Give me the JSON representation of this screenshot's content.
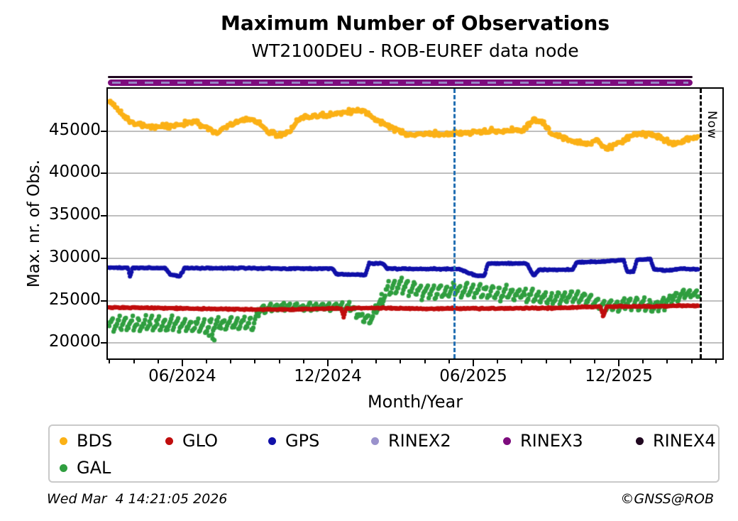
{
  "header": {
    "title": "Maximum Number of Observations",
    "subtitle": "WT2100DEU - ROB-EUREF data node"
  },
  "annotations": {
    "now_label": "Now",
    "footer_left": "Wed Mar  4 14:21:05 2026",
    "footer_right": "©GNSS@ROB"
  },
  "chart_data": {
    "type": "scatter",
    "title": "Maximum Number of Observations",
    "subtitle": "WT2100DEU - ROB-EUREF data node",
    "xlabel": "Month/Year",
    "ylabel": "Max. nr. of Obs.",
    "x_unit": "months since 2024-01-01",
    "xlim": [
      1.93,
      27.27
    ],
    "ylim": [
      18200,
      50000
    ],
    "grid": "horizontal-only",
    "legend_position": "bottom",
    "y_tick_values": [
      45000,
      40000,
      35000,
      30000,
      25000,
      20000
    ],
    "y_tick_labels": [
      "45000",
      "40000",
      "35000",
      "30000",
      "25000",
      "20000"
    ],
    "x_tick_months": [
      5,
      11,
      17,
      23
    ],
    "x_tick_labels": [
      "06/2024",
      "12/2024",
      "06/2025",
      "12/2025"
    ],
    "x_minor_months": [
      2,
      3,
      4,
      6,
      7,
      8,
      9,
      10,
      12,
      13,
      14,
      15,
      16,
      18,
      19,
      20,
      21,
      22,
      24,
      25,
      26,
      27
    ],
    "markers": {
      "event_vline_month": 16.18,
      "event_vline_color": "#2470b3",
      "now_vline_month": 26.32,
      "now_vline_color": "#000000",
      "series_end_month": 26.3,
      "rinex_end_month": 26.05
    },
    "z_order": [
      "GAL",
      "GLO",
      "GPS",
      "BDS"
    ],
    "series": [
      {
        "name": "BDS",
        "color": "#fbb116",
        "marker_radius": 3.3,
        "noise": 280,
        "step": 0.04,
        "anchors": [
          [
            1.95,
            48500
          ],
          [
            2.15,
            48200
          ],
          [
            2.5,
            47100
          ],
          [
            2.9,
            46000
          ],
          [
            3.4,
            45600
          ],
          [
            4.3,
            45500
          ],
          [
            5.0,
            45800
          ],
          [
            5.5,
            46100
          ],
          [
            6.0,
            45400
          ],
          [
            6.4,
            44800
          ],
          [
            6.9,
            45600
          ],
          [
            7.5,
            46300
          ],
          [
            8.1,
            46200
          ],
          [
            8.5,
            45000
          ],
          [
            9.0,
            44400
          ],
          [
            9.4,
            44900
          ],
          [
            9.8,
            46500
          ],
          [
            10.5,
            46800
          ],
          [
            11.2,
            47000
          ],
          [
            11.8,
            47200
          ],
          [
            12.2,
            47500
          ],
          [
            12.6,
            47200
          ],
          [
            13.0,
            46400
          ],
          [
            13.6,
            45400
          ],
          [
            14.2,
            44700
          ],
          [
            15.0,
            44600
          ],
          [
            16.0,
            44650
          ],
          [
            16.8,
            44800
          ],
          [
            17.6,
            45000
          ],
          [
            18.4,
            45000
          ],
          [
            19.0,
            45100
          ],
          [
            19.5,
            46300
          ],
          [
            19.9,
            46000
          ],
          [
            20.2,
            44800
          ],
          [
            20.7,
            44200
          ],
          [
            21.2,
            43700
          ],
          [
            21.7,
            43500
          ],
          [
            22.1,
            43900
          ],
          [
            22.5,
            42800
          ],
          [
            22.9,
            43500
          ],
          [
            23.4,
            44200
          ],
          [
            23.8,
            44800
          ],
          [
            24.3,
            44600
          ],
          [
            24.8,
            44100
          ],
          [
            25.3,
            43400
          ],
          [
            25.8,
            44000
          ],
          [
            26.3,
            44300
          ]
        ]
      },
      {
        "name": "GLO",
        "color": "#c00d0d",
        "marker_radius": 3.0,
        "noise": 80,
        "step": 0.033,
        "anchors": [
          [
            1.95,
            24200
          ],
          [
            4.0,
            24150
          ],
          [
            6.0,
            24050
          ],
          [
            8.0,
            23980
          ],
          [
            9.5,
            23950
          ],
          [
            11.0,
            24100
          ],
          [
            11.55,
            24100
          ],
          [
            11.65,
            23000
          ],
          [
            11.75,
            24100
          ],
          [
            13.0,
            24150
          ],
          [
            15.0,
            24050
          ],
          [
            17.0,
            24100
          ],
          [
            19.0,
            24100
          ],
          [
            20.5,
            24150
          ],
          [
            21.5,
            24250
          ],
          [
            22.25,
            24300
          ],
          [
            22.35,
            23100
          ],
          [
            22.5,
            24300
          ],
          [
            23.5,
            24350
          ],
          [
            24.5,
            24300
          ],
          [
            25.5,
            24450
          ],
          [
            26.3,
            24400
          ]
        ]
      },
      {
        "name": "GPS",
        "color": "#1010a8",
        "marker_radius": 3.0,
        "noise": 70,
        "step": 0.033,
        "anchors": [
          [
            1.95,
            28900
          ],
          [
            2.75,
            28900
          ],
          [
            2.85,
            27800
          ],
          [
            2.95,
            28900
          ],
          [
            4.3,
            28850
          ],
          [
            4.5,
            28100
          ],
          [
            4.9,
            27900
          ],
          [
            5.1,
            28850
          ],
          [
            7.0,
            28850
          ],
          [
            9.0,
            28800
          ],
          [
            11.2,
            28800
          ],
          [
            11.35,
            28150
          ],
          [
            12.55,
            28050
          ],
          [
            12.7,
            29450
          ],
          [
            13.3,
            29350
          ],
          [
            13.45,
            28800
          ],
          [
            14.5,
            28750
          ],
          [
            16.4,
            28750
          ],
          [
            17.1,
            27950
          ],
          [
            17.45,
            27950
          ],
          [
            17.6,
            29400
          ],
          [
            19.2,
            29400
          ],
          [
            19.35,
            28650
          ],
          [
            19.5,
            27950
          ],
          [
            19.7,
            28650
          ],
          [
            21.1,
            28650
          ],
          [
            21.25,
            29500
          ],
          [
            22.3,
            29650
          ],
          [
            23.2,
            29800
          ],
          [
            23.35,
            28400
          ],
          [
            23.6,
            28400
          ],
          [
            23.75,
            29850
          ],
          [
            24.3,
            29900
          ],
          [
            24.45,
            28750
          ],
          [
            25.0,
            28550
          ],
          [
            25.6,
            28800
          ],
          [
            26.3,
            28700
          ]
        ]
      },
      {
        "name": "RINEX2",
        "color": "#9a92cc",
        "constant_value": 50700,
        "style": "dashes-over-rinex3"
      },
      {
        "name": "RINEX3",
        "color": "#7d0c7d",
        "constant_value": 50700,
        "style": "thick-band"
      },
      {
        "name": "RINEX4",
        "color": "#200820",
        "constant_value": 51400,
        "style": "thin-line"
      },
      {
        "name": "GAL",
        "color": "#2f9e3f",
        "marker_radius": 3.2,
        "step": 0.036,
        "anchors_band": [
          [
            1.95,
            22400,
            1000
          ],
          [
            3.0,
            22300,
            1000
          ],
          [
            4.0,
            22300,
            1000
          ],
          [
            5.0,
            22200,
            1000
          ],
          [
            6.3,
            22000,
            1100
          ],
          [
            7.0,
            22300,
            900
          ],
          [
            7.9,
            22200,
            900
          ],
          [
            8.2,
            23900,
            600
          ],
          [
            9.0,
            24300,
            500
          ],
          [
            10.0,
            24200,
            500
          ],
          [
            11.0,
            24300,
            500
          ],
          [
            12.0,
            24200,
            550
          ],
          [
            12.4,
            23000,
            600
          ],
          [
            12.8,
            22900,
            600
          ],
          [
            13.1,
            24500,
            700
          ],
          [
            13.5,
            26500,
            1300
          ],
          [
            14.0,
            26800,
            1100
          ],
          [
            14.8,
            26200,
            1000
          ],
          [
            15.5,
            26000,
            1000
          ],
          [
            16.3,
            26300,
            950
          ],
          [
            17.0,
            26200,
            900
          ],
          [
            17.8,
            26000,
            900
          ],
          [
            18.6,
            25900,
            850
          ],
          [
            19.4,
            25600,
            850
          ],
          [
            20.0,
            25300,
            800
          ],
          [
            20.8,
            25400,
            800
          ],
          [
            21.5,
            25500,
            750
          ],
          [
            22.2,
            24600,
            850
          ],
          [
            22.8,
            24400,
            850
          ],
          [
            23.4,
            24800,
            900
          ],
          [
            24.0,
            24500,
            850
          ],
          [
            24.6,
            24300,
            850
          ],
          [
            25.2,
            25300,
            650
          ],
          [
            25.8,
            25800,
            550
          ],
          [
            26.3,
            25800,
            500
          ]
        ],
        "outliers": [
          [
            6.1,
            20900
          ],
          [
            6.25,
            20550
          ],
          [
            6.32,
            20350
          ]
        ]
      }
    ]
  }
}
